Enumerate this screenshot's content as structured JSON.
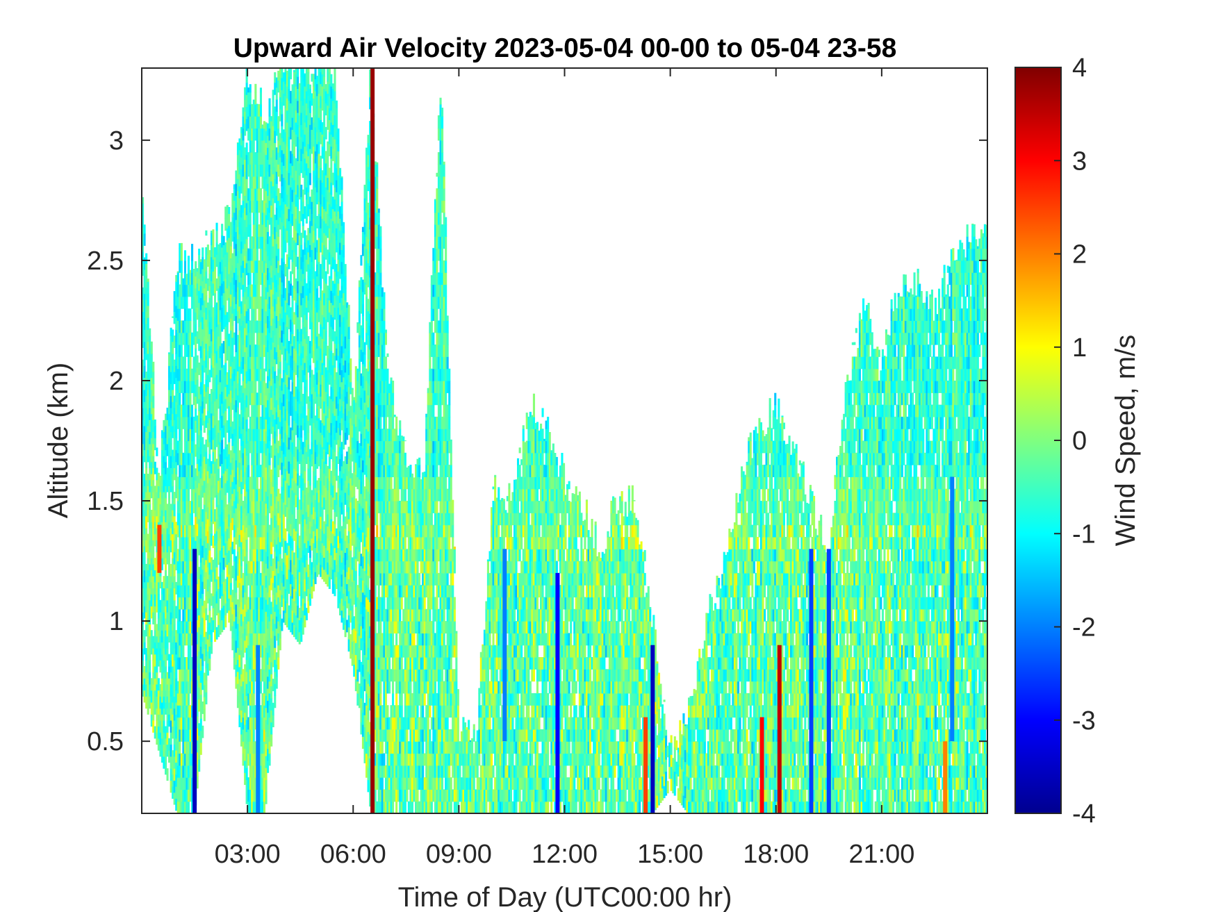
{
  "chart_data": {
    "type": "heatmap",
    "title": "Upward Air Velocity 2023-05-04 00-00 to 05-04 23-58",
    "xlabel": "Time of Day (UTC00:00 hr)",
    "ylabel": "Altitude (km)",
    "colorbar_label": "Wind Speed, m/s",
    "x_ticks": [
      {
        "value": 3,
        "label": "03:00"
      },
      {
        "value": 6,
        "label": "06:00"
      },
      {
        "value": 9,
        "label": "09:00"
      },
      {
        "value": 12,
        "label": "12:00"
      },
      {
        "value": 15,
        "label": "15:00"
      },
      {
        "value": 18,
        "label": "18:00"
      },
      {
        "value": 21,
        "label": "21:00"
      }
    ],
    "y_ticks": [
      {
        "value": 0.5,
        "label": "0.5"
      },
      {
        "value": 1,
        "label": "1"
      },
      {
        "value": 1.5,
        "label": "1.5"
      },
      {
        "value": 2,
        "label": "2"
      },
      {
        "value": 2.5,
        "label": "2.5"
      },
      {
        "value": 3,
        "label": "3"
      }
    ],
    "c_ticks": [
      {
        "value": -4,
        "label": "-4"
      },
      {
        "value": -3,
        "label": "-3"
      },
      {
        "value": -2,
        "label": "-2"
      },
      {
        "value": -1,
        "label": "-1"
      },
      {
        "value": 0,
        "label": "0"
      },
      {
        "value": 1,
        "label": "1"
      },
      {
        "value": 2,
        "label": "2"
      },
      {
        "value": 3,
        "label": "3"
      },
      {
        "value": 4,
        "label": "4"
      }
    ],
    "xlim": [
      0,
      24
    ],
    "ylim": [
      0.2,
      3.3
    ],
    "clim": [
      -4,
      4
    ],
    "colormap": "jet",
    "grid": false,
    "colorbar_position": "right",
    "data_top_km": [
      [
        0.0,
        2.8
      ],
      [
        0.5,
        1.6
      ],
      [
        1.0,
        2.5
      ],
      [
        1.5,
        2.5
      ],
      [
        2.0,
        2.6
      ],
      [
        2.5,
        2.7
      ],
      [
        3.0,
        3.3
      ],
      [
        3.5,
        3.1
      ],
      [
        4.0,
        3.3
      ],
      [
        4.5,
        3.3
      ],
      [
        5.0,
        3.3
      ],
      [
        5.5,
        3.3
      ],
      [
        6.0,
        1.9
      ],
      [
        6.5,
        3.3
      ],
      [
        7.0,
        2.0
      ],
      [
        7.5,
        1.7
      ],
      [
        8.0,
        1.6
      ],
      [
        8.5,
        3.3
      ],
      [
        9.0,
        0.55
      ],
      [
        9.5,
        0.55
      ],
      [
        10.0,
        1.6
      ],
      [
        10.5,
        1.5
      ],
      [
        11.0,
        1.9
      ],
      [
        11.5,
        1.8
      ],
      [
        12.0,
        1.6
      ],
      [
        12.5,
        1.5
      ],
      [
        13.0,
        1.3
      ],
      [
        13.5,
        1.5
      ],
      [
        14.0,
        1.5
      ],
      [
        14.5,
        1.0
      ],
      [
        15.0,
        0.45
      ],
      [
        15.5,
        0.6
      ],
      [
        16.0,
        1.0
      ],
      [
        16.5,
        1.2
      ],
      [
        17.0,
        1.6
      ],
      [
        17.5,
        1.8
      ],
      [
        18.0,
        1.9
      ],
      [
        18.5,
        1.7
      ],
      [
        19.0,
        1.5
      ],
      [
        19.5,
        1.3
      ],
      [
        20.0,
        2.0
      ],
      [
        20.5,
        2.3
      ],
      [
        21.0,
        2.1
      ],
      [
        21.5,
        2.4
      ],
      [
        22.0,
        2.4
      ],
      [
        22.5,
        2.3
      ],
      [
        23.0,
        2.5
      ],
      [
        23.5,
        2.6
      ],
      [
        24.0,
        2.6
      ]
    ],
    "data_bottom_km": [
      [
        0.0,
        0.7
      ],
      [
        0.5,
        0.45
      ],
      [
        1.0,
        0.2
      ],
      [
        1.5,
        0.2
      ],
      [
        2.0,
        0.9
      ],
      [
        2.5,
        1.0
      ],
      [
        3.0,
        0.2
      ],
      [
        3.5,
        0.2
      ],
      [
        4.0,
        1.0
      ],
      [
        4.5,
        0.9
      ],
      [
        5.0,
        1.2
      ],
      [
        5.5,
        1.1
      ],
      [
        6.0,
        0.8
      ],
      [
        6.5,
        0.2
      ],
      [
        7.0,
        0.2
      ],
      [
        7.5,
        0.2
      ],
      [
        8.0,
        0.2
      ],
      [
        8.5,
        0.2
      ],
      [
        9.0,
        0.2
      ],
      [
        9.5,
        0.2
      ],
      [
        10.0,
        0.2
      ],
      [
        10.5,
        0.2
      ],
      [
        11.0,
        0.2
      ],
      [
        11.5,
        0.2
      ],
      [
        12.0,
        0.2
      ],
      [
        12.5,
        0.2
      ],
      [
        13.0,
        0.2
      ],
      [
        13.5,
        0.2
      ],
      [
        14.0,
        0.2
      ],
      [
        14.5,
        0.2
      ],
      [
        15.0,
        0.3
      ],
      [
        15.5,
        0.2
      ],
      [
        16.0,
        0.2
      ],
      [
        16.5,
        0.2
      ],
      [
        17.0,
        0.2
      ],
      [
        17.5,
        0.2
      ],
      [
        18.0,
        0.2
      ],
      [
        18.5,
        0.2
      ],
      [
        19.0,
        0.2
      ],
      [
        19.5,
        0.2
      ],
      [
        20.0,
        0.2
      ],
      [
        20.5,
        0.2
      ],
      [
        21.0,
        0.2
      ],
      [
        21.5,
        0.2
      ],
      [
        22.0,
        0.2
      ],
      [
        22.5,
        0.2
      ],
      [
        23.0,
        0.2
      ],
      [
        23.5,
        0.2
      ],
      [
        24.0,
        0.2
      ]
    ],
    "downdraft_streaks": [
      {
        "time": 1.5,
        "from_km": 0.2,
        "to_km": 1.3,
        "value": -3.5
      },
      {
        "time": 3.3,
        "from_km": 0.2,
        "to_km": 0.9,
        "value": -2
      },
      {
        "time": 10.3,
        "from_km": 0.5,
        "to_km": 1.3,
        "value": -2
      },
      {
        "time": 11.8,
        "from_km": 0.2,
        "to_km": 1.2,
        "value": -3
      },
      {
        "time": 14.5,
        "from_km": 0.2,
        "to_km": 0.9,
        "value": -3.5
      },
      {
        "time": 19.0,
        "from_km": 0.2,
        "to_km": 1.3,
        "value": -2.5
      },
      {
        "time": 19.5,
        "from_km": 0.2,
        "to_km": 1.3,
        "value": -2.5
      },
      {
        "time": 23.0,
        "from_km": 0.5,
        "to_km": 1.6,
        "value": -2
      }
    ],
    "updraft_streaks": [
      {
        "time": 0.5,
        "from_km": 1.2,
        "to_km": 1.4,
        "value": 2.5
      },
      {
        "time": 6.55,
        "from_km": 0.2,
        "to_km": 3.3,
        "value": 3.8
      },
      {
        "time": 14.3,
        "from_km": 0.2,
        "to_km": 0.6,
        "value": 2.5
      },
      {
        "time": 17.6,
        "from_km": 0.2,
        "to_km": 0.6,
        "value": 3
      },
      {
        "time": 18.1,
        "from_km": 0.2,
        "to_km": 0.9,
        "value": 3.5
      },
      {
        "time": 22.8,
        "from_km": 0.2,
        "to_km": 0.5,
        "value": 2
      }
    ]
  }
}
